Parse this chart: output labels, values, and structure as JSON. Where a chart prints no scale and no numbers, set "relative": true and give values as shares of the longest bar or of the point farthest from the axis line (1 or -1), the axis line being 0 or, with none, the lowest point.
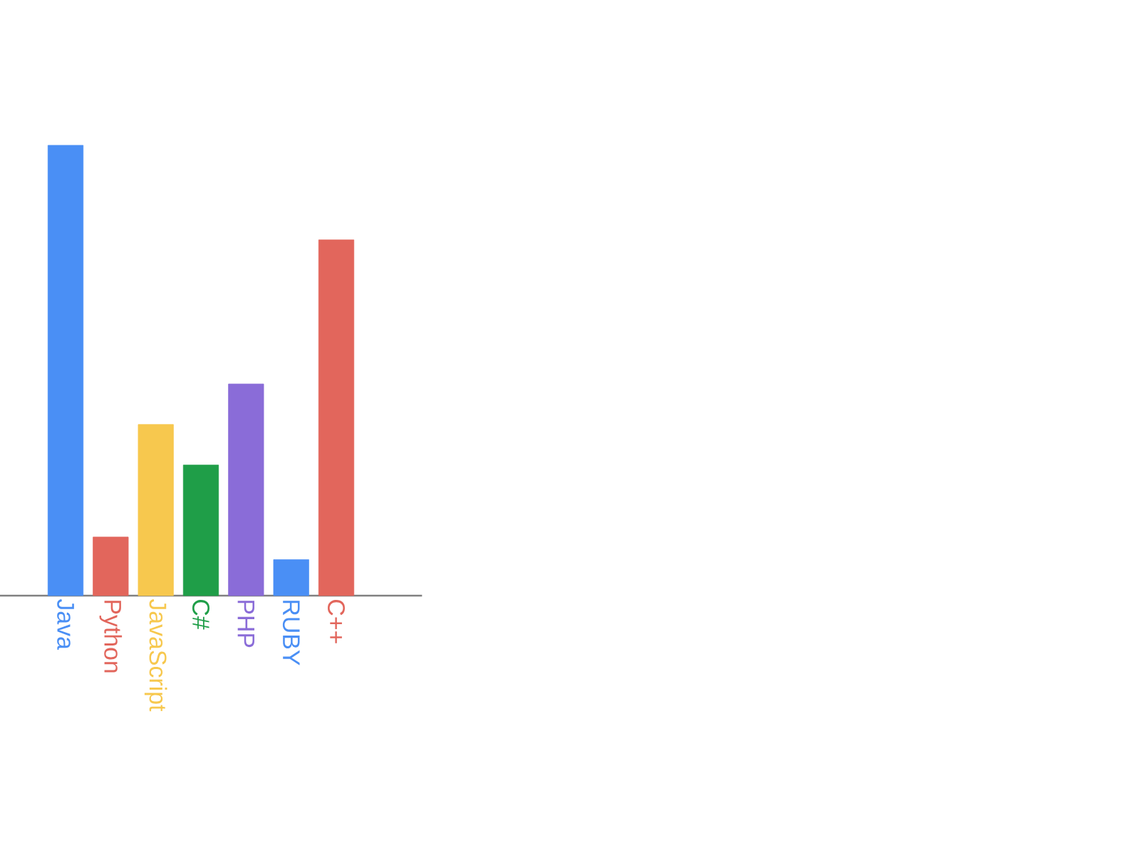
{
  "chart_data": {
    "type": "bar",
    "relative": true,
    "categories": [
      "Java",
      "Python",
      "JavaScript",
      "C#",
      "PHP",
      "RUBY",
      "C++"
    ],
    "values": [
      1,
      0.13,
      0.38,
      0.29,
      0.47,
      0.08,
      0.79
    ],
    "colors": [
      "#4a8ff5",
      "#e2665c",
      "#f7c84e",
      "#1f9e48",
      "#8a6cd8",
      "#4a8ff5",
      "#e2665c"
    ]
  }
}
